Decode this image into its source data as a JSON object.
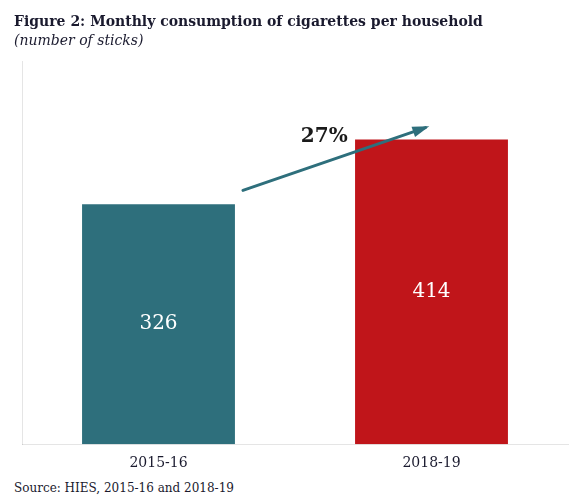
{
  "chart_data": {
    "type": "bar",
    "title": "Figure 2: Monthly consumption of cigarettes per household",
    "subtitle": "(number of sticks)",
    "categories": [
      "2015-16",
      "2018-19"
    ],
    "values": [
      326,
      414
    ],
    "colors": [
      "#2e6f7c",
      "#c0151a"
    ],
    "ylim": [
      0,
      520
    ],
    "data_labels": true,
    "tick_labels": "x",
    "grid": false,
    "annotations": [
      "27%"
    ],
    "source": "Source: HIES, 2015-16 and 2018-19"
  }
}
